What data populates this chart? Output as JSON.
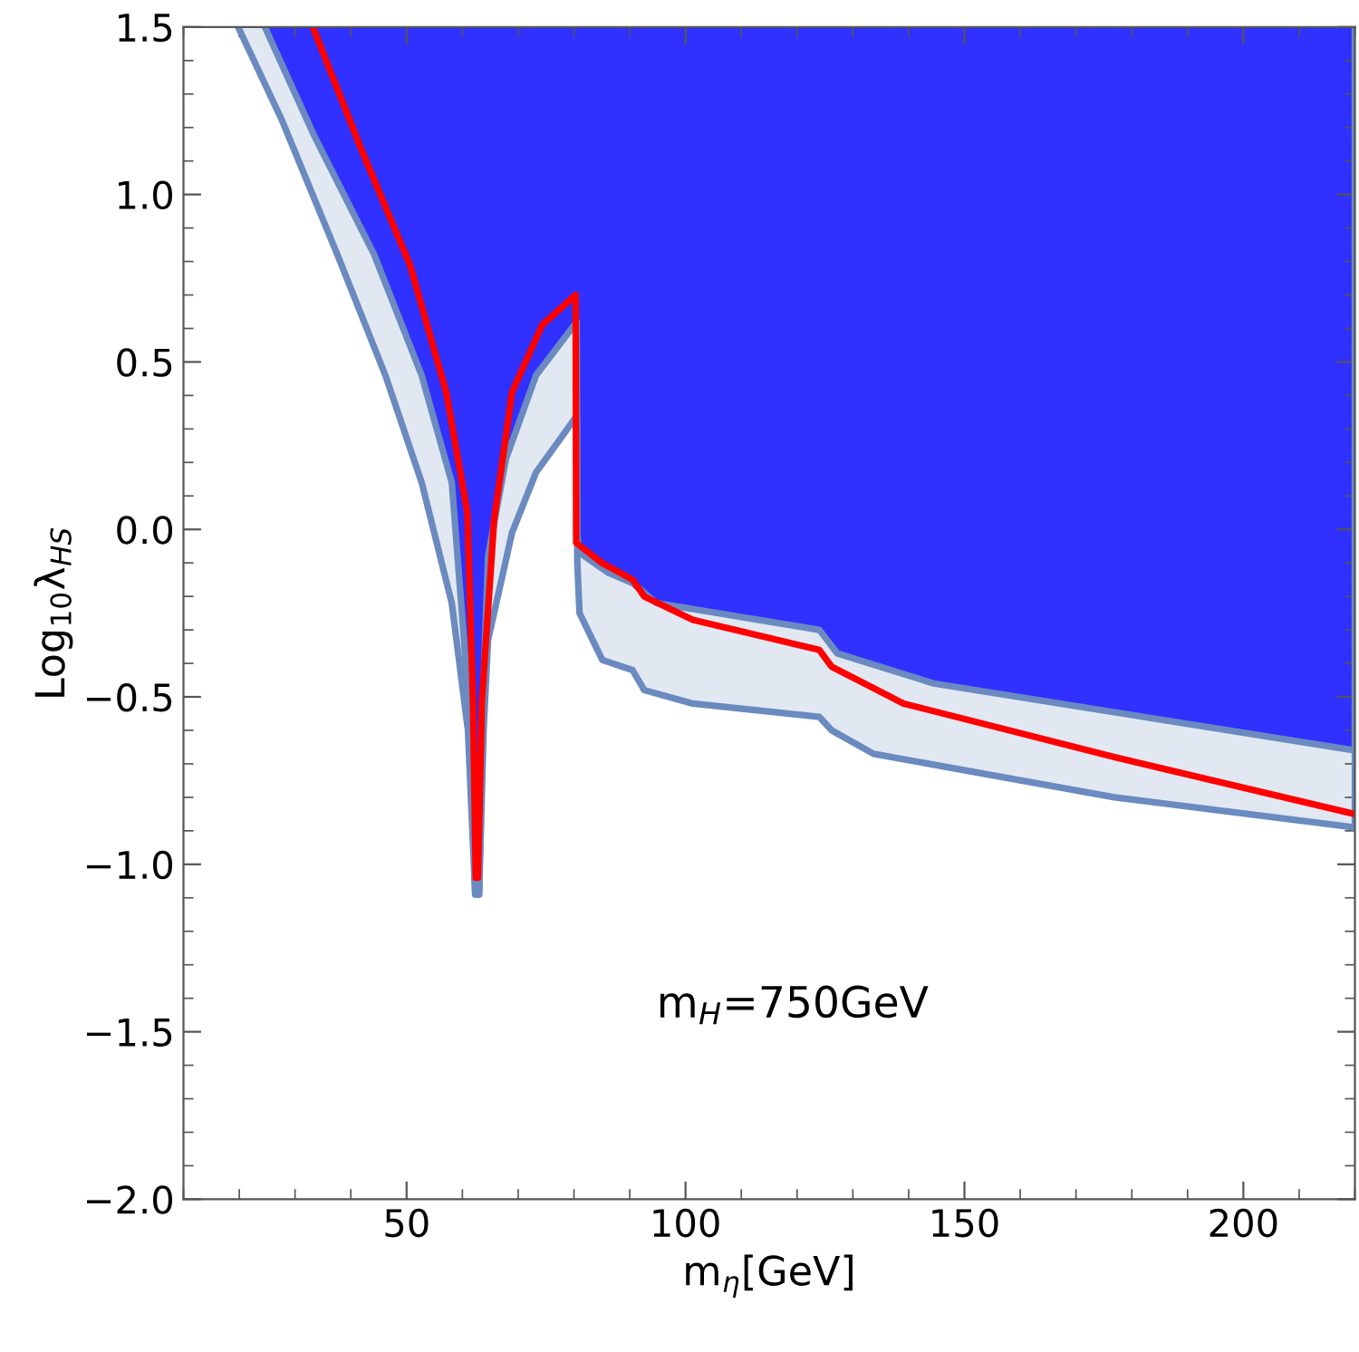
{
  "chart_data": {
    "type": "line",
    "xlabel": "m$_{η}$[GeV]",
    "ylabel": "Log$_{10}$λ$_{HS}$",
    "annotations": [
      "m$_{H}$=750GeV"
    ],
    "xlim": [
      10,
      220
    ],
    "ylim": [
      -2.0,
      1.5
    ],
    "xticks": [
      50,
      100,
      150,
      200
    ],
    "yticks": [
      {
        "value": -2.0,
        "label": "−2.0"
      },
      {
        "value": -1.5,
        "label": "−1.5"
      },
      {
        "value": -1.0,
        "label": "−1.0"
      },
      {
        "value": -0.5,
        "label": "−0.5"
      },
      {
        "value": 0.0,
        "label": "0.0"
      },
      {
        "value": 0.5,
        "label": "0.5"
      },
      {
        "value": 1.0,
        "label": "1.0"
      },
      {
        "value": 1.5,
        "label": "1.5"
      }
    ],
    "grid": false,
    "legend": false,
    "series": [
      {
        "type": "area",
        "color": "#6a8ac0",
        "x": [
          19.8,
          27.7,
          37.6,
          46.2,
          52.7,
          58.1,
          61,
          62.3,
          63,
          63.8,
          64.6,
          68.9,
          73.2,
          79.7,
          80.5,
          80.6,
          81,
          85.1,
          90.5,
          92.6,
          101.3,
          124,
          126.2,
          133.7,
          176.9,
          220,
          220
        ],
        "values": [
          1.5,
          1.22,
          0.82,
          0.46,
          0.14,
          -0.22,
          -0.6,
          -1.09,
          -1.09,
          -0.6,
          -0.33,
          -0.01,
          0.17,
          0.32,
          0.34,
          -0.1,
          -0.25,
          -0.39,
          -0.42,
          -0.48,
          -0.52,
          -0.56,
          -0.6,
          -0.67,
          -0.8,
          -0.89,
          1.5
        ]
      },
      {
        "type": "area",
        "color": "#3030ff",
        "x": [
          24.6,
          33.3,
          44.2,
          52.7,
          58.1,
          60.3,
          61.8,
          62.3,
          63,
          63.5,
          64.6,
          67.8,
          73.2,
          80.5,
          80.6,
          81,
          86.2,
          90.5,
          94.8,
          124,
          127.2,
          144.5,
          220,
          220
        ],
        "values": [
          1.5,
          1.18,
          0.82,
          0.46,
          0.14,
          -0.33,
          -0.7,
          -1.09,
          -1.09,
          -0.6,
          -0.08,
          0.21,
          0.46,
          0.62,
          -0.02,
          -0.07,
          -0.13,
          -0.16,
          -0.22,
          -0.3,
          -0.37,
          -0.46,
          -0.66,
          1.5
        ]
      },
      {
        "color": "#ff0000",
        "x": [
          33.2,
          42,
          50.6,
          57.1,
          60.9,
          61.9,
          62.4,
          62.8,
          63.5,
          65.7,
          68.9,
          74.3,
          80.3,
          80.4,
          85,
          90.5,
          92.6,
          101.3,
          124,
          126.2,
          139.1,
          176.9,
          220
        ],
        "values": [
          1.5,
          1.13,
          0.79,
          0.41,
          0.05,
          -0.51,
          -1.04,
          -1.04,
          -0.51,
          0.03,
          0.41,
          0.61,
          0.7,
          -0.04,
          -0.1,
          -0.15,
          -0.2,
          -0.27,
          -0.36,
          -0.41,
          -0.52,
          -0.68,
          -0.85
        ]
      }
    ]
  }
}
